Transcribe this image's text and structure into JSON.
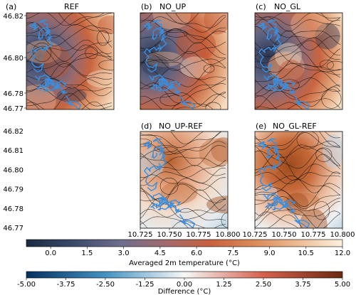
{
  "chart_data": {
    "type": "heatmap",
    "panels": [
      {
        "id": "a",
        "tag": "(a)",
        "title": "REF",
        "kind": "abs"
      },
      {
        "id": "b",
        "tag": "(b)",
        "title": "NO_UP",
        "kind": "abs"
      },
      {
        "id": "c",
        "tag": "(c)",
        "title": "NO_GL",
        "kind": "abs"
      },
      {
        "id": "d",
        "tag": "(d)",
        "title": "NO_UP-REF",
        "kind": "diff"
      },
      {
        "id": "e",
        "tag": "(e)",
        "title": "NO_GL-REF",
        "kind": "diff"
      }
    ],
    "y_ticks": [
      "46.82",
      "46.81",
      "46.80",
      "46.79",
      "46.78",
      "46.77"
    ],
    "y_ticks_short": [
      "46.82",
      "46.80",
      "46.78",
      "46.77"
    ],
    "x_ticks": [
      "10.725",
      "10.750",
      "10.775",
      "10.800"
    ],
    "xlim": [
      10.725,
      10.8
    ],
    "ylim": [
      46.77,
      46.82
    ],
    "colorbar_temp": {
      "label": "Averaged 2m temperature (°C)",
      "ticks": [
        "0.0",
        "1.5",
        "3.0",
        "4.5",
        "6.0",
        "7.5",
        "9.0",
        "10.5",
        "12.0"
      ],
      "range": [
        -1.0,
        12.0
      ]
    },
    "colorbar_diff": {
      "label": "Difference (°C)",
      "ticks": [
        "-5.00",
        "-3.75",
        "-2.50",
        "-1.25",
        "0.00",
        "1.25",
        "2.50",
        "3.75",
        "5.00"
      ],
      "range": [
        -5.0,
        5.0
      ]
    }
  },
  "colors": {
    "glacier_outline": "#3a8fe0",
    "contour": "#111111"
  }
}
